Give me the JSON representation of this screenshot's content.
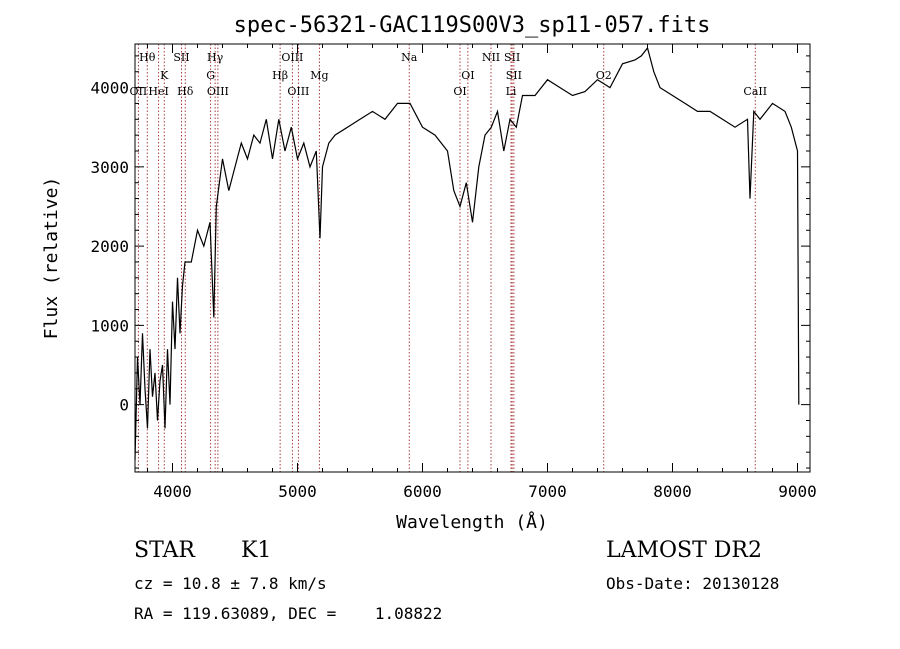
{
  "chart_data": {
    "type": "line",
    "title": "spec-56321-GAC119S00V3_sp11-057.fits",
    "xlabel": "Wavelength (Å)",
    "ylabel": "Flux (relative)",
    "xlim": [
      3700,
      9100
    ],
    "ylim": [
      -850,
      4550
    ],
    "xticks": [
      4000,
      5000,
      6000,
      7000,
      8000,
      9000
    ],
    "xtick_labels": [
      "4000",
      "5000",
      "6000",
      "7000",
      "8000",
      "9000"
    ],
    "yticks": [
      0,
      1000,
      2000,
      3000,
      4000
    ],
    "ytick_labels": [
      "0",
      "1000",
      "2000",
      "3000",
      "4000"
    ],
    "grid": false,
    "series": [
      {
        "x": [
          3700,
          3720,
          3740,
          3760,
          3780,
          3800,
          3820,
          3840,
          3860,
          3880,
          3900,
          3920,
          3940,
          3960,
          3980,
          4000,
          4020,
          4040,
          4060,
          4080,
          4100,
          4150,
          4200,
          4250,
          4300,
          4330,
          4350,
          4400,
          4450,
          4500,
          4550,
          4600,
          4650,
          4700,
          4750,
          4800,
          4850,
          4900,
          4950,
          5000,
          5050,
          5100,
          5150,
          5180,
          5200,
          5250,
          5300,
          5400,
          5500,
          5600,
          5700,
          5800,
          5900,
          6000,
          6100,
          6200,
          6250,
          6300,
          6350,
          6400,
          6450,
          6500,
          6550,
          6600,
          6650,
          6700,
          6750,
          6800,
          6900,
          7000,
          7100,
          7200,
          7300,
          7400,
          7500,
          7600,
          7700,
          7750,
          7800,
          7850,
          7900,
          8000,
          8100,
          8200,
          8300,
          8400,
          8500,
          8600,
          8620,
          8650,
          8700,
          8800,
          8900,
          8950,
          9000,
          9010
        ],
        "y": [
          -700,
          600,
          0,
          900,
          200,
          -300,
          700,
          100,
          400,
          -200,
          300,
          500,
          -300,
          700,
          0,
          1300,
          700,
          1600,
          900,
          1500,
          1800,
          1800,
          2200,
          2000,
          2300,
          1100,
          2500,
          3100,
          2700,
          3000,
          3300,
          3100,
          3400,
          3300,
          3600,
          3100,
          3600,
          3200,
          3500,
          3100,
          3300,
          3000,
          3200,
          2100,
          3000,
          3300,
          3400,
          3500,
          3600,
          3700,
          3600,
          3800,
          3800,
          3500,
          3400,
          3200,
          2700,
          2500,
          2800,
          2300,
          3000,
          3400,
          3500,
          3700,
          3200,
          3600,
          3500,
          3900,
          3900,
          4100,
          4000,
          3900,
          3950,
          4100,
          4000,
          4300,
          4350,
          4400,
          4500,
          4200,
          4000,
          3900,
          3800,
          3700,
          3700,
          3600,
          3500,
          3600,
          2600,
          3700,
          3600,
          3800,
          3700,
          3500,
          3200,
          0
        ]
      }
    ],
    "line_labels": [
      {
        "label": "Hθ",
        "wavelength": 3798,
        "row": 1
      },
      {
        "label": "OII",
        "wavelength": 3727,
        "row": 3
      },
      {
        "label": "K",
        "wavelength": 3934,
        "row": 2
      },
      {
        "label": "HeI",
        "wavelength": 3889,
        "row": 3
      },
      {
        "label": "SII",
        "wavelength": 4072,
        "row": 1
      },
      {
        "label": "Hδ",
        "wavelength": 4102,
        "row": 3
      },
      {
        "label": "Hγ",
        "wavelength": 4341,
        "row": 1
      },
      {
        "label": "G",
        "wavelength": 4305,
        "row": 2
      },
      {
        "label": "OIII",
        "wavelength": 4363,
        "row": 3
      },
      {
        "label": "OIII",
        "wavelength": 4959,
        "row": 1
      },
      {
        "label": "Hβ",
        "wavelength": 4861,
        "row": 2
      },
      {
        "label": "OIII",
        "wavelength": 5007,
        "row": 3
      },
      {
        "label": "Mg",
        "wavelength": 5175,
        "row": 2
      },
      {
        "label": "Na",
        "wavelength": 5894,
        "row": 1
      },
      {
        "label": "OI",
        "wavelength": 6363,
        "row": 2
      },
      {
        "label": "OI",
        "wavelength": 6300,
        "row": 3
      },
      {
        "label": "NII",
        "wavelength": 6548,
        "row": 1
      },
      {
        "label": "SII",
        "wavelength": 6717,
        "row": 1
      },
      {
        "label": "SII",
        "wavelength": 6731,
        "row": 2
      },
      {
        "label": "Li",
        "wavelength": 6708,
        "row": 3
      },
      {
        "label": "O2",
        "wavelength": 7450,
        "row": 2
      },
      {
        "label": "CaII",
        "wavelength": 8662,
        "row": 3
      }
    ]
  },
  "info": {
    "class": "STAR",
    "subclass": "K1",
    "survey": "LAMOST DR2",
    "cz": "cz = 10.8 ± 7.8 km/s",
    "obs_date": "Obs-Date: 20130128",
    "radec": "RA = 119.63089, DEC =    1.08822"
  }
}
